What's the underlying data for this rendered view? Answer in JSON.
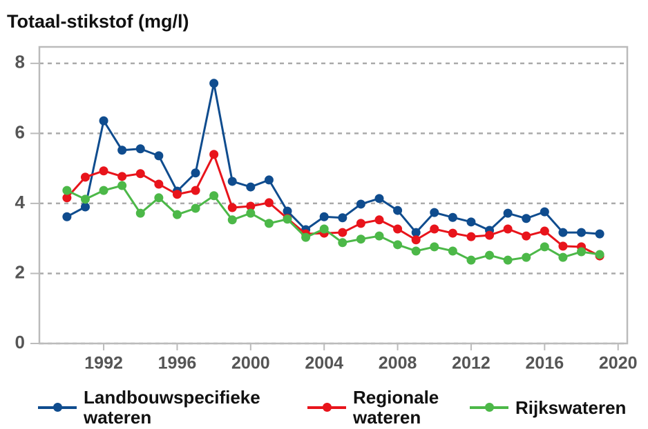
{
  "chart_data": {
    "type": "line",
    "title": "Totaal-stikstof (mg/l)",
    "x": [
      1990,
      1991,
      1992,
      1993,
      1994,
      1995,
      1996,
      1997,
      1998,
      1999,
      2000,
      2001,
      2002,
      2003,
      2004,
      2005,
      2006,
      2007,
      2008,
      2009,
      2010,
      2011,
      2012,
      2013,
      2014,
      2015,
      2016,
      2017,
      2018,
      2019
    ],
    "series": [
      {
        "name": "Landbouwspecifieke wateren",
        "color": "#0f4c8e",
        "values": [
          3.62,
          3.9,
          6.36,
          5.52,
          5.56,
          5.36,
          4.35,
          4.87,
          7.43,
          4.63,
          4.47,
          4.67,
          3.78,
          3.25,
          3.62,
          3.59,
          3.98,
          4.14,
          3.8,
          3.17,
          3.74,
          3.6,
          3.47,
          3.23,
          3.72,
          3.57,
          3.76,
          3.17,
          3.17,
          3.13
        ]
      },
      {
        "name": "Regionale wateren",
        "color": "#e8141b",
        "values": [
          4.16,
          4.75,
          4.93,
          4.77,
          4.85,
          4.55,
          4.26,
          4.37,
          5.4,
          3.88,
          3.92,
          4.02,
          3.57,
          3.13,
          3.15,
          3.17,
          3.43,
          3.53,
          3.27,
          2.96,
          3.27,
          3.15,
          3.05,
          3.09,
          3.27,
          3.07,
          3.21,
          2.78,
          2.76,
          2.5
        ]
      },
      {
        "name": "Rijkswateren",
        "color": "#4cb848",
        "values": [
          4.37,
          4.12,
          4.37,
          4.51,
          3.72,
          4.16,
          3.68,
          3.86,
          4.22,
          3.53,
          3.72,
          3.43,
          3.55,
          3.03,
          3.27,
          2.88,
          2.98,
          3.07,
          2.82,
          2.64,
          2.76,
          2.64,
          2.38,
          2.52,
          2.38,
          2.46,
          2.76,
          2.46,
          2.62,
          2.54
        ]
      }
    ],
    "xlim": [
      1988.5,
      2020.5
    ],
    "xticks": [
      1992,
      1996,
      2000,
      2004,
      2008,
      2012,
      2016,
      2020
    ],
    "ylim": [
      0,
      8.47
    ],
    "yticks": [
      0,
      2,
      4,
      6,
      8
    ],
    "grid": true
  }
}
